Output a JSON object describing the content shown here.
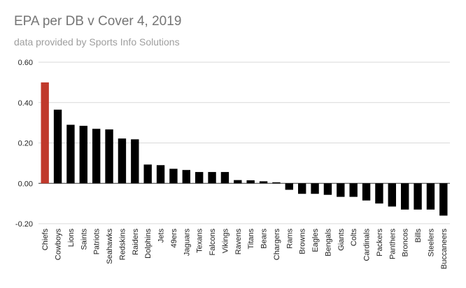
{
  "chart_data": {
    "type": "bar",
    "title": "EPA per DB v Cover 4, 2019",
    "subtitle": "data provided by Sports Info Solutions",
    "xlabel": "",
    "ylabel": "",
    "ylim": [
      -0.2,
      0.6
    ],
    "yticks": [
      "0.60",
      "0.40",
      "0.20",
      "0.00",
      "-0.20"
    ],
    "ytick_values": [
      0.6,
      0.4,
      0.2,
      0.0,
      -0.2
    ],
    "grid": true,
    "legend": "none",
    "categories": [
      "Chiefs",
      "Cowboys",
      "Lions",
      "Saints",
      "Patriots",
      "Seahawks",
      "Redskins",
      "Raiders",
      "Dolphins",
      "Jets",
      "49ers",
      "Jaguars",
      "Texans",
      "Falcons",
      "Vikings",
      "Ravens",
      "Titans",
      "Bears",
      "Chargers",
      "Rams",
      "Browns",
      "Eagles",
      "Bengals",
      "Giants",
      "Colts",
      "Cardinals",
      "Packers",
      "Panthers",
      "Broncos",
      "Bills",
      "Steelers",
      "Buccaneers"
    ],
    "values": [
      0.5,
      0.365,
      0.29,
      0.285,
      0.27,
      0.267,
      0.222,
      0.218,
      0.093,
      0.09,
      0.072,
      0.066,
      0.056,
      0.056,
      0.056,
      0.016,
      0.015,
      0.01,
      0.005,
      -0.032,
      -0.052,
      -0.052,
      -0.057,
      -0.067,
      -0.067,
      -0.085,
      -0.1,
      -0.115,
      -0.13,
      -0.13,
      -0.13,
      -0.16
    ],
    "highlight_color": "#c0392b",
    "bar_color": "#000000",
    "highlight_index": 0
  }
}
